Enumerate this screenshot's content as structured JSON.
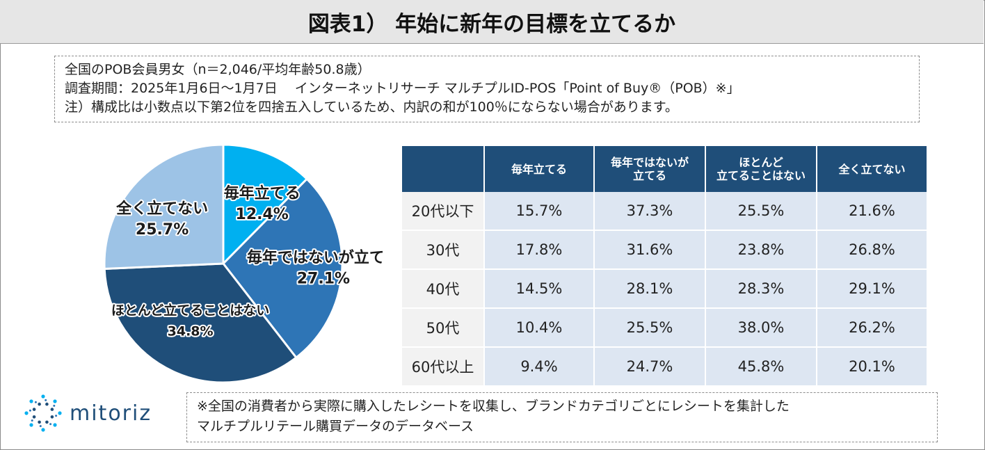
{
  "title": "図表1） 年始に新年の目標を立てるか",
  "notes": [
    "全国のPOB会員男女（n＝2,046/平均年齢50.8歳）",
    "調査期間：2025年1月6日～1月7日　 インターネットリサーチ マルチプルID-POS「Point of Buy®（POB）※」",
    "注）構成比は小数点以下第2位を四捨五入しているため、内訳の和が100％にならない場合があります。"
  ],
  "chart_data": [
    {
      "type": "pie",
      "categories": [
        "毎年立てる",
        "毎年ではないが立てる",
        "ほとんど立てることはない",
        "全く立てない"
      ],
      "values": [
        12.4,
        27.1,
        34.8,
        25.7
      ],
      "value_labels": [
        "12.4%",
        "27.1%",
        "34.8%",
        "25.7%"
      ],
      "colors": [
        "#00b0f0",
        "#2e75b6",
        "#1f4e79",
        "#9dc3e6"
      ]
    },
    {
      "type": "table",
      "columns": [
        "",
        "毎年立てる",
        "毎年ではないが|立てる",
        "ほとんど|立てることはない",
        "全く立てない"
      ],
      "rows": [
        {
          "label": "20代以下",
          "values": [
            "15.7%",
            "37.3%",
            "25.5%",
            "21.6%"
          ]
        },
        {
          "label": "30代",
          "values": [
            "17.8%",
            "31.6%",
            "23.8%",
            "26.8%"
          ]
        },
        {
          "label": "40代",
          "values": [
            "14.5%",
            "28.1%",
            "28.3%",
            "29.1%"
          ]
        },
        {
          "label": "50代",
          "values": [
            "10.4%",
            "25.5%",
            "38.0%",
            "26.2%"
          ]
        },
        {
          "label": "60代以上",
          "values": [
            "9.4%",
            "24.7%",
            "45.8%",
            "20.1%"
          ]
        }
      ]
    }
  ],
  "logo": {
    "text": "mitoriz",
    "icon": "mitoriz-star-logo-icon",
    "color": "#1f4e79"
  },
  "footnote": [
    "※全国の消費者から実際に購入したレシートを収集し、ブランドカテゴリごとにレシートを集計した",
    "マルチプルリテール購買データのデータベース"
  ]
}
